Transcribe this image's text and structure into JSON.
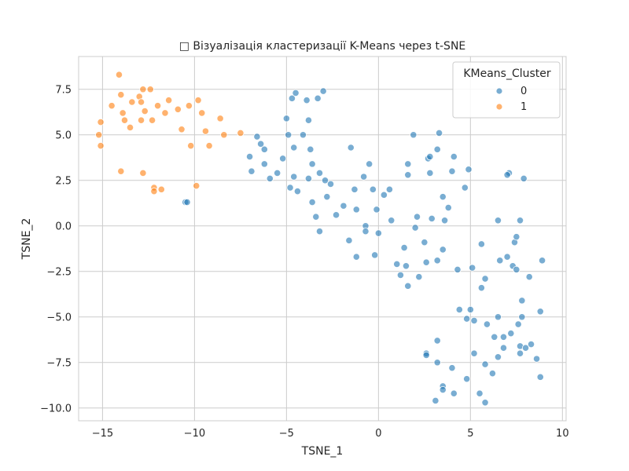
{
  "chart_data": {
    "type": "scatter",
    "title": "□ Візуалізація кластеризації K-Means через t-SNE",
    "xlabel": "TSNE_1",
    "ylabel": "TSNE_2",
    "xlim": [
      -16.3,
      10.2
    ],
    "ylim": [
      -10.7,
      9.3
    ],
    "x_ticks": [
      -15,
      -10,
      -5,
      0,
      5,
      10
    ],
    "x_tick_labels": [
      "−15",
      "−10",
      "−5",
      "0",
      "5",
      "10"
    ],
    "y_ticks": [
      -10,
      -7.5,
      -5,
      -2.5,
      0,
      2.5,
      5,
      7.5
    ],
    "y_tick_labels": [
      "−10.0",
      "−7.5",
      "−5.0",
      "−2.5",
      "0.0",
      "2.5",
      "5.0",
      "7.5"
    ],
    "grid": true,
    "legend": {
      "title": "KMeans_Cluster",
      "placement": "top-right",
      "entries": [
        {
          "label": "0",
          "color": "#1f77b4"
        },
        {
          "label": "1",
          "color": "#ff7f0e"
        }
      ]
    },
    "series": [
      {
        "label": "0",
        "color": "#1f77b4",
        "points": [
          [
            -4.7,
            7.0
          ],
          [
            -4.5,
            7.3
          ],
          [
            -3.9,
            6.9
          ],
          [
            -3.3,
            7.0
          ],
          [
            -3.0,
            7.4
          ],
          [
            -6.6,
            4.9
          ],
          [
            -6.4,
            4.5
          ],
          [
            -6.2,
            4.2
          ],
          [
            -7.0,
            3.8
          ],
          [
            -6.9,
            3.0
          ],
          [
            -6.2,
            3.4
          ],
          [
            -5.9,
            2.6
          ],
          [
            -5.5,
            2.9
          ],
          [
            -5.2,
            3.7
          ],
          [
            -5.0,
            5.9
          ],
          [
            -4.9,
            5.0
          ],
          [
            -4.6,
            4.3
          ],
          [
            -4.1,
            5.0
          ],
          [
            -3.8,
            5.8
          ],
          [
            -3.7,
            4.2
          ],
          [
            -3.6,
            3.4
          ],
          [
            -4.6,
            2.7
          ],
          [
            -3.8,
            2.6
          ],
          [
            -3.2,
            2.9
          ],
          [
            -2.9,
            2.5
          ],
          [
            -2.6,
            2.3
          ],
          [
            -4.8,
            2.1
          ],
          [
            -4.4,
            1.9
          ],
          [
            -3.6,
            1.3
          ],
          [
            -3.4,
            0.5
          ],
          [
            -3.2,
            -0.3
          ],
          [
            -2.8,
            1.6
          ],
          [
            -2.3,
            0.6
          ],
          [
            -1.9,
            1.1
          ],
          [
            -1.6,
            -0.8
          ],
          [
            -1.5,
            4.3
          ],
          [
            -1.3,
            2.0
          ],
          [
            -1.2,
            0.9
          ],
          [
            -1.2,
            -1.7
          ],
          [
            -0.8,
            2.7
          ],
          [
            -0.7,
            0.0
          ],
          [
            -0.7,
            -0.3
          ],
          [
            -0.5,
            3.4
          ],
          [
            -0.3,
            2.0
          ],
          [
            -0.2,
            -1.6
          ],
          [
            -0.1,
            0.9
          ],
          [
            0.0,
            -0.4
          ],
          [
            0.3,
            1.7
          ],
          [
            0.6,
            2.0
          ],
          [
            0.7,
            0.3
          ],
          [
            1.0,
            -2.1
          ],
          [
            1.2,
            -2.7
          ],
          [
            1.4,
            -1.2
          ],
          [
            1.5,
            -2.2
          ],
          [
            1.6,
            2.8
          ],
          [
            1.6,
            3.4
          ],
          [
            1.6,
            -3.3
          ],
          [
            1.9,
            5.0
          ],
          [
            2.1,
            0.5
          ],
          [
            2.0,
            -0.1
          ],
          [
            2.2,
            -2.8
          ],
          [
            2.5,
            -0.9
          ],
          [
            2.6,
            -2.0
          ],
          [
            2.7,
            3.7
          ],
          [
            2.8,
            3.8
          ],
          [
            2.8,
            2.9
          ],
          [
            2.9,
            0.4
          ],
          [
            3.2,
            4.2
          ],
          [
            3.3,
            5.1
          ],
          [
            3.2,
            -1.9
          ],
          [
            3.5,
            -1.3
          ],
          [
            3.5,
            1.6
          ],
          [
            3.6,
            0.3
          ],
          [
            3.8,
            1.0
          ],
          [
            4.0,
            3.0
          ],
          [
            4.1,
            3.8
          ],
          [
            4.3,
            -2.4
          ],
          [
            4.7,
            2.1
          ],
          [
            4.9,
            3.1
          ],
          [
            5.1,
            -2.3
          ],
          [
            5.6,
            -1.0
          ],
          [
            5.8,
            -2.9
          ],
          [
            6.5,
            0.3
          ],
          [
            6.6,
            -1.9
          ],
          [
            7.0,
            -1.7
          ],
          [
            7.1,
            2.9
          ],
          [
            7.3,
            -2.2
          ],
          [
            7.4,
            -0.9
          ],
          [
            7.5,
            -0.6
          ],
          [
            7.5,
            -2.4
          ],
          [
            7.7,
            0.3
          ],
          [
            7.9,
            2.6
          ],
          [
            7.8,
            -4.1
          ],
          [
            7.8,
            -5.0
          ],
          [
            8.2,
            -2.8
          ],
          [
            8.9,
            -1.9
          ],
          [
            4.4,
            -4.6
          ],
          [
            4.8,
            -5.1
          ],
          [
            5.0,
            -4.6
          ],
          [
            5.2,
            -5.2
          ],
          [
            5.6,
            -3.4
          ],
          [
            5.9,
            -5.4
          ],
          [
            6.3,
            -6.1
          ],
          [
            6.5,
            -5.0
          ],
          [
            6.8,
            -6.1
          ],
          [
            6.8,
            -6.7
          ],
          [
            7.2,
            -5.9
          ],
          [
            7.6,
            -5.4
          ],
          [
            7.7,
            -6.6
          ],
          [
            8.0,
            -6.7
          ],
          [
            8.3,
            -6.5
          ],
          [
            7.7,
            -7.0
          ],
          [
            6.5,
            -7.2
          ],
          [
            5.2,
            -7.0
          ],
          [
            5.8,
            -7.6
          ],
          [
            6.2,
            -8.1
          ],
          [
            2.6,
            -7.0
          ],
          [
            2.6,
            -7.1
          ],
          [
            3.2,
            -6.3
          ],
          [
            3.2,
            -7.5
          ],
          [
            4.0,
            -7.8
          ],
          [
            3.5,
            -8.8
          ],
          [
            3.5,
            -9.0
          ],
          [
            4.8,
            -8.4
          ],
          [
            4.1,
            -9.2
          ],
          [
            5.5,
            -9.2
          ],
          [
            3.1,
            -9.6
          ],
          [
            5.8,
            -9.7
          ],
          [
            8.6,
            -7.3
          ],
          [
            8.8,
            -8.3
          ],
          [
            8.8,
            -4.7
          ],
          [
            -10.5,
            1.3
          ],
          [
            -10.4,
            1.3
          ],
          [
            7.0,
            2.8
          ]
        ]
      },
      {
        "label": "1",
        "color": "#ff7f0e",
        "points": [
          [
            -14.1,
            8.3
          ],
          [
            -14.0,
            7.2
          ],
          [
            -14.5,
            6.6
          ],
          [
            -13.9,
            6.2
          ],
          [
            -13.8,
            5.8
          ],
          [
            -13.4,
            6.8
          ],
          [
            -13.5,
            5.4
          ],
          [
            -13.0,
            7.1
          ],
          [
            -12.9,
            6.8
          ],
          [
            -12.9,
            5.8
          ],
          [
            -12.8,
            7.5
          ],
          [
            -12.7,
            6.3
          ],
          [
            -12.4,
            7.5
          ],
          [
            -12.3,
            5.8
          ],
          [
            -12.0,
            6.6
          ],
          [
            -11.6,
            6.2
          ],
          [
            -11.4,
            6.9
          ],
          [
            -10.9,
            6.4
          ],
          [
            -10.7,
            5.3
          ],
          [
            -10.3,
            6.6
          ],
          [
            -10.2,
            4.4
          ],
          [
            -9.8,
            6.9
          ],
          [
            -9.6,
            6.2
          ],
          [
            -9.4,
            5.2
          ],
          [
            -9.2,
            4.4
          ],
          [
            -8.6,
            5.9
          ],
          [
            -8.4,
            5.0
          ],
          [
            -7.5,
            5.1
          ],
          [
            -15.1,
            5.7
          ],
          [
            -15.2,
            5.0
          ],
          [
            -15.1,
            4.4
          ],
          [
            -14.0,
            3.0
          ],
          [
            -12.8,
            2.9
          ],
          [
            -12.2,
            2.1
          ],
          [
            -12.2,
            1.9
          ],
          [
            -11.8,
            2.0
          ],
          [
            -9.9,
            2.2
          ]
        ]
      }
    ]
  }
}
